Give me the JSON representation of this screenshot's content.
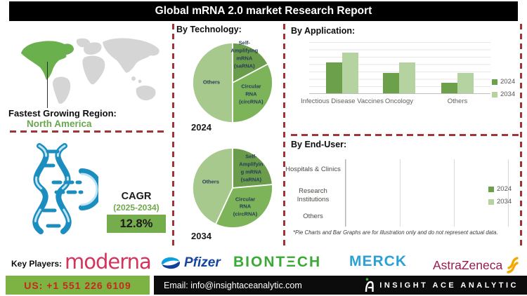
{
  "header": {
    "title": "Global mRNA 2.0 market Research Report"
  },
  "region": {
    "label": "Fastest Growing Region:",
    "value": "North America"
  },
  "cagr": {
    "label": "CAGR",
    "period": "(2025-2034)",
    "value": "12.8%"
  },
  "sections": {
    "technology": "By Technology:",
    "application": "By Application:",
    "end_user": "By End-User:"
  },
  "note": "*Pie Charts and Bar Graphs are for illustration only and do not represent actual data.",
  "key_players": {
    "label": "Key Players:",
    "companies": [
      {
        "name": "moderna",
        "text": "moderna",
        "color": "#d6335c"
      },
      {
        "name": "pfizer",
        "text": "Pfizer",
        "color": "#15459c"
      },
      {
        "name": "biontech",
        "text": "BIONTΞCH",
        "color": "#3aa935"
      },
      {
        "name": "merck",
        "text": "MERCK",
        "color": "#2aa0d8"
      },
      {
        "name": "astrazeneca",
        "text": "AstraZeneca",
        "color": "#951b4e"
      }
    ]
  },
  "footer": {
    "phone": "US: +1 551 226 6109",
    "email": "Email: info@insightaceanalytic.com",
    "brand": "INSIGHT ACE ANALYTIC"
  },
  "colors": {
    "title_bar": "#000000",
    "dashed_divider": "#a23338",
    "series_2024": "#6da04b",
    "series_2034": "#b5d3a1",
    "pie_dark": "#6b9c4c",
    "pie_mid": "#7db45a",
    "pie_light": "#a7c98d",
    "accent_green": "#6fa84c",
    "map_land": "#d5d5d5",
    "map_highlight": "#6ab04c",
    "dna_teal": "#1c8dbf",
    "phone_box": "#7cb342",
    "phone_text": "#c5281c"
  },
  "chart_data": [
    {
      "id": "technology-2024",
      "type": "pie",
      "section": "By Technology:",
      "year": "2024",
      "slices": [
        {
          "label": "Self-\nAmplifying\nmRNA\n(saRNA)",
          "value_deg": [
            0,
            62
          ],
          "share_pct": 17,
          "color": "#6b9c4c",
          "label_pos": [
            64,
            17
          ]
        },
        {
          "label": "Circular RNA\n(circRNA)",
          "value_deg": [
            62,
            180
          ],
          "share_pct": 33,
          "color": "#7db45a",
          "label_pos": [
            72,
            64
          ]
        },
        {
          "label": "Others",
          "value_deg": [
            180,
            360
          ],
          "share_pct": 50,
          "color": "#a7c98d",
          "label_pos": [
            25,
            50
          ]
        }
      ]
    },
    {
      "id": "technology-2034",
      "type": "pie",
      "section": "By Technology:",
      "year": "2034",
      "slices": [
        {
          "label": "Self-\nAmplifyin\ng mRNA\n(saRNA)",
          "value_deg": [
            0,
            85
          ],
          "share_pct": 24,
          "color": "#6b9c4c",
          "label_pos": [
            72,
            27
          ]
        },
        {
          "label": "Circular RNA\n(circRNA)",
          "value_deg": [
            85,
            205
          ],
          "share_pct": 33,
          "color": "#7db45a",
          "label_pos": [
            65,
            73
          ]
        },
        {
          "label": "Others",
          "value_deg": [
            205,
            360
          ],
          "share_pct": 43,
          "color": "#a7c98d",
          "label_pos": [
            24,
            43
          ]
        }
      ]
    },
    {
      "id": "application",
      "type": "bar",
      "title": "By Application:",
      "categories": [
        "Infectious Disease Vaccines",
        "Oncology",
        "Others"
      ],
      "series": [
        {
          "name": "2024",
          "color": "#6da04b",
          "values": [
            60,
            40,
            20
          ]
        },
        {
          "name": "2034",
          "color": "#b5d3a1",
          "values": [
            80,
            60,
            40
          ]
        }
      ],
      "ylim": [
        0,
        100
      ],
      "grid": "horizontal",
      "legend_position": "right"
    },
    {
      "id": "end-user",
      "type": "stacked-bar-horizontal",
      "title": "By End-User:",
      "categories": [
        "Hospitals & Clinics",
        "Research Institutions",
        "Others"
      ],
      "series": [
        {
          "name": "2024",
          "color": "#6da04b",
          "values": [
            25,
            16,
            8
          ]
        },
        {
          "name": "2034",
          "color": "#b5d3a1",
          "values": [
            33,
            25,
            17
          ]
        }
      ],
      "xlim": [
        0,
        100
      ],
      "grid": "vertical",
      "legend_position": "right"
    }
  ]
}
